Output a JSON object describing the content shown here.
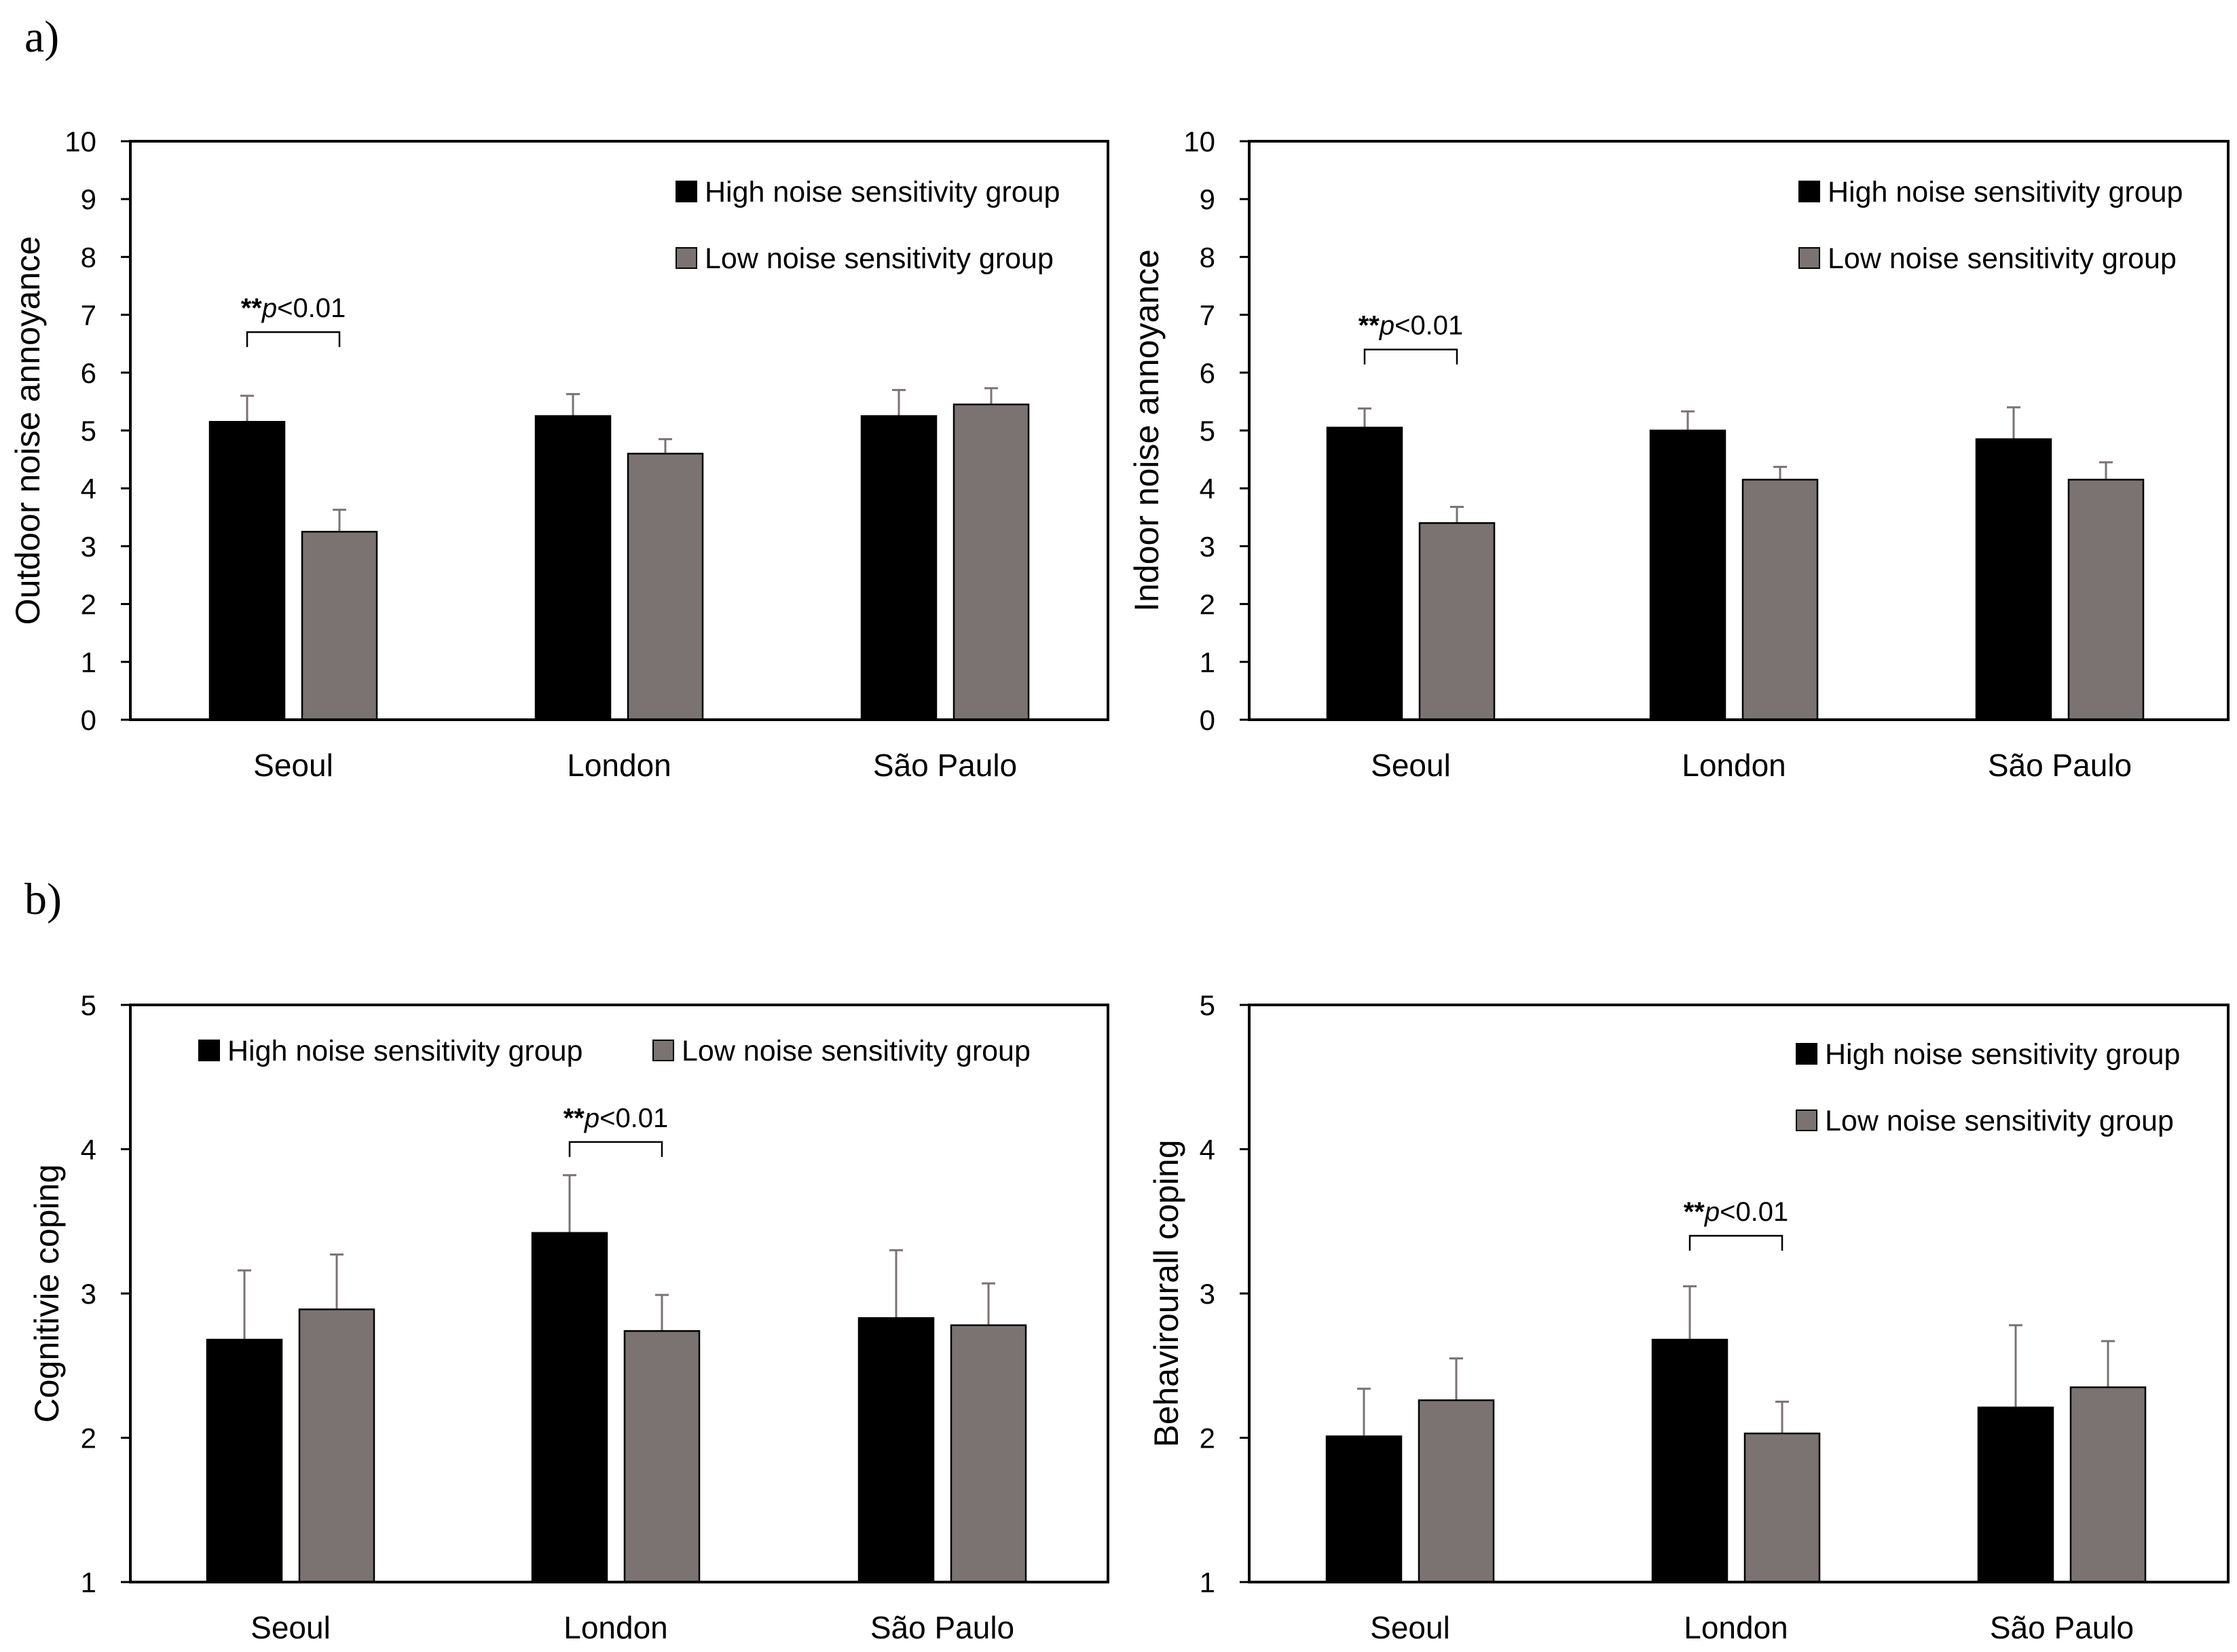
{
  "panel_labels": {
    "a": "a)",
    "b": "b)"
  },
  "colors": {
    "high": "#000000",
    "low": "#7a7372",
    "error": "#7a7372",
    "axis": "#000000"
  },
  "chart_data": [
    {
      "type": "bar",
      "id": "outdoor",
      "categories": [
        "Seoul",
        "London",
        "São Paulo"
      ],
      "ylabel": "Outdoor noise annoyance",
      "ylim": [
        0,
        10
      ],
      "yticks": [
        "0",
        "1",
        "2",
        "3",
        "4",
        "5",
        "6",
        "7",
        "8",
        "9",
        "10"
      ],
      "legend": {
        "placement": "top-right",
        "layout": "stacked",
        "high": "High noise sensitivity group",
        "low": "Low noise sensitivity group"
      },
      "series": [
        {
          "name": "High noise sensitivity group",
          "values": [
            5.15,
            5.25,
            5.25
          ],
          "errors": [
            0.45,
            0.38,
            0.45
          ]
        },
        {
          "name": "Low noise sensitivity group",
          "values": [
            3.25,
            4.6,
            5.45
          ],
          "errors": [
            0.38,
            0.25,
            0.28
          ]
        }
      ],
      "annotation": {
        "category": 0,
        "level": 6.7,
        "stars": "**",
        "p": "p",
        "value": "<0.01"
      }
    },
    {
      "type": "bar",
      "id": "indoor",
      "categories": [
        "Seoul",
        "London",
        "São Paulo"
      ],
      "ylabel": "Indoor noise annoyance",
      "ylim": [
        0,
        10
      ],
      "yticks": [
        "0",
        "1",
        "2",
        "3",
        "4",
        "5",
        "6",
        "7",
        "8",
        "9",
        "10"
      ],
      "legend": {
        "placement": "top-right",
        "layout": "stacked",
        "high": "High noise sensitivity group",
        "low": "Low noise sensitivity group"
      },
      "series": [
        {
          "name": "High noise sensitivity group",
          "values": [
            5.05,
            5.0,
            4.85
          ],
          "errors": [
            0.33,
            0.33,
            0.55
          ]
        },
        {
          "name": "Low noise sensitivity group",
          "values": [
            3.4,
            4.15,
            4.15
          ],
          "errors": [
            0.28,
            0.22,
            0.3
          ]
        }
      ],
      "annotation": {
        "category": 0,
        "level": 6.4,
        "stars": "**",
        "p": "p",
        "value": "<0.01"
      }
    },
    {
      "type": "bar",
      "id": "cognitive",
      "categories": [
        "Seoul",
        "London",
        "São Paulo"
      ],
      "ylabel": "Cognitivie coping",
      "ylim": [
        1,
        5
      ],
      "yticks": [
        "1",
        "2",
        "3",
        "4",
        "5"
      ],
      "legend": {
        "placement": "top",
        "layout": "row",
        "high": "High noise sensitivity group",
        "low": "Low noise sensitivity group"
      },
      "series": [
        {
          "name": "High noise sensitivity group",
          "values": [
            2.68,
            3.42,
            2.83
          ],
          "errors": [
            0.48,
            0.4,
            0.47
          ]
        },
        {
          "name": "Low noise sensitivity group",
          "values": [
            2.89,
            2.74,
            2.78
          ],
          "errors": [
            0.38,
            0.25,
            0.29
          ]
        }
      ],
      "annotation": {
        "category": 1,
        "level": 4.05,
        "stars": "**",
        "p": "p",
        "value": "<0.01"
      }
    },
    {
      "type": "bar",
      "id": "behavioural",
      "categories": [
        "Seoul",
        "London",
        "São Paulo"
      ],
      "ylabel": "Behavirourall coping",
      "ylim": [
        1,
        5
      ],
      "yticks": [
        "1",
        "2",
        "3",
        "4",
        "5"
      ],
      "legend": {
        "placement": "top-right",
        "layout": "stacked",
        "high": "High noise sensitivity group",
        "low": "Low noise sensitivity group"
      },
      "series": [
        {
          "name": "High noise sensitivity group",
          "values": [
            2.01,
            2.68,
            2.21
          ],
          "errors": [
            0.33,
            0.37,
            0.57
          ]
        },
        {
          "name": "Low noise sensitivity group",
          "values": [
            2.26,
            2.03,
            2.35
          ],
          "errors": [
            0.29,
            0.22,
            0.32
          ]
        }
      ],
      "annotation": {
        "category": 1,
        "level": 3.4,
        "stars": "**",
        "p": "p",
        "value": "<0.01"
      }
    }
  ]
}
